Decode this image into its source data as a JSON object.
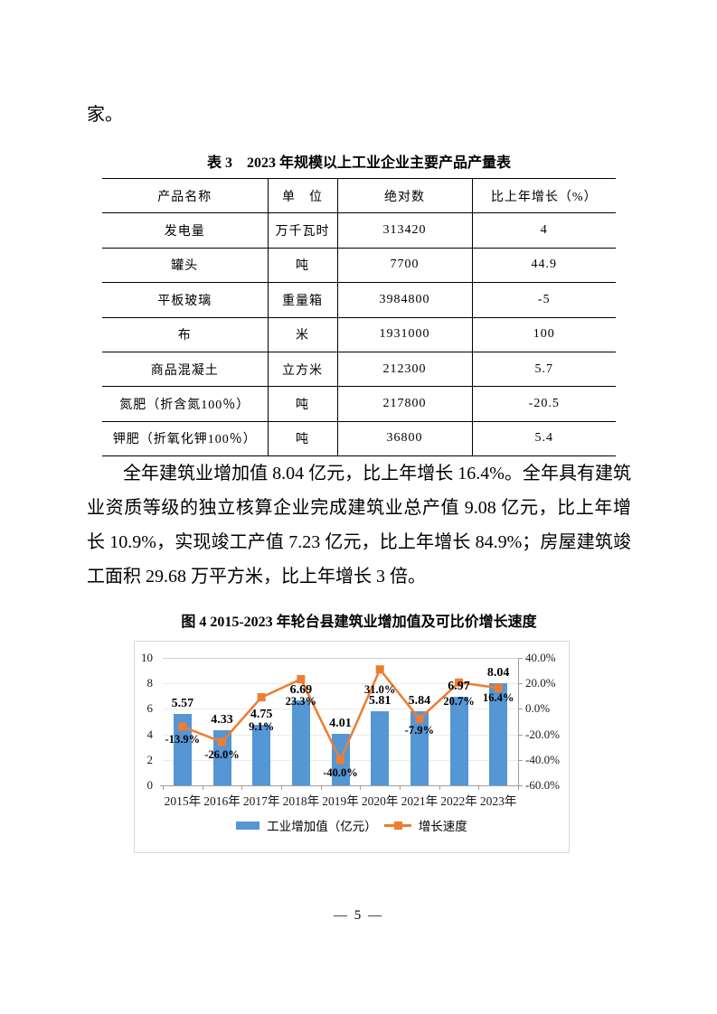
{
  "page": {
    "leading_text": "家。",
    "page_number": "— 5 —"
  },
  "table": {
    "title": "表 3　2023 年规模以上工业企业主要产品产量表",
    "headers": [
      "产品名称",
      "单　位",
      "绝对数",
      "比上年增长（%）"
    ],
    "rows": [
      [
        "发电量",
        "万千瓦时",
        "313420",
        "4"
      ],
      [
        "罐头",
        "吨",
        "7700",
        "44.9"
      ],
      [
        "平板玻璃",
        "重量箱",
        "3984800",
        "-5"
      ],
      [
        "布",
        "米",
        "1931000",
        "100"
      ],
      [
        "商品混凝土",
        "立方米",
        "212300",
        "5.7"
      ],
      [
        "氮肥（折含氮100％）",
        "吨",
        "217800",
        "-20.5"
      ],
      [
        "钾肥（折氧化钾100％）",
        "吨",
        "36800",
        "5.4"
      ]
    ]
  },
  "paragraph": "全年建筑业增加值 8.04 亿元，比上年增长 16.4%。全年具有建筑业资质等级的独立核算企业完成建筑业总产值 9.08 亿元，比上年增长 10.9%，实现竣工产值 7.23 亿元，比上年增长 84.9%；房屋建筑竣工面积 29.68 万平方米，比上年增长 3 倍。",
  "figure": {
    "title": "图 4 2015-2023 年轮台县建筑业增加值及可比价增长速度"
  },
  "chart_data": {
    "type": "bar",
    "subtype": "bar-line-combo",
    "title": "图 4 2015-2023 年轮台县建筑业增加值及可比价增长速度",
    "categories": [
      "2015年",
      "2016年",
      "2017年",
      "2018年",
      "2019年",
      "2020年",
      "2021年",
      "2022年",
      "2023年"
    ],
    "series": [
      {
        "name": "工业增加值（亿元）",
        "type": "bar",
        "axis": "left",
        "color": "#5596d4",
        "values": [
          5.57,
          4.33,
          4.75,
          6.69,
          4.01,
          5.81,
          5.84,
          6.97,
          8.04
        ],
        "labels": [
          "5.57",
          "4.33",
          "4.75",
          "6.69",
          "4.01",
          "5.81",
          "5.84",
          "6.97",
          "8.04"
        ]
      },
      {
        "name": "增长速度",
        "type": "line",
        "axis": "right",
        "color": "#ed7d31",
        "marker": "square",
        "values": [
          -13.9,
          -26.0,
          9.1,
          23.3,
          -40.0,
          31.0,
          -7.9,
          20.7,
          16.4
        ],
        "labels": [
          "-13.9%",
          "-26.0%",
          "9.1%",
          "23.3%",
          "-40.0%",
          "31.0%",
          "-7.9%",
          "20.7%",
          "16.4%"
        ]
      }
    ],
    "left_axis": {
      "range": [
        0,
        10
      ],
      "ticks": [
        "0",
        "2",
        "4",
        "6",
        "8",
        "10"
      ]
    },
    "right_axis": {
      "range": [
        -60,
        40
      ],
      "ticks": [
        "40.0%",
        "20.0%",
        "0.0%",
        "-20.0%",
        "-40.0%",
        "-60.0%"
      ]
    },
    "legend": [
      "工业增加值（亿元）",
      "增长速度"
    ],
    "legend_position": "bottom",
    "grid": "faint horizontal lines at right-axis tick levels"
  }
}
